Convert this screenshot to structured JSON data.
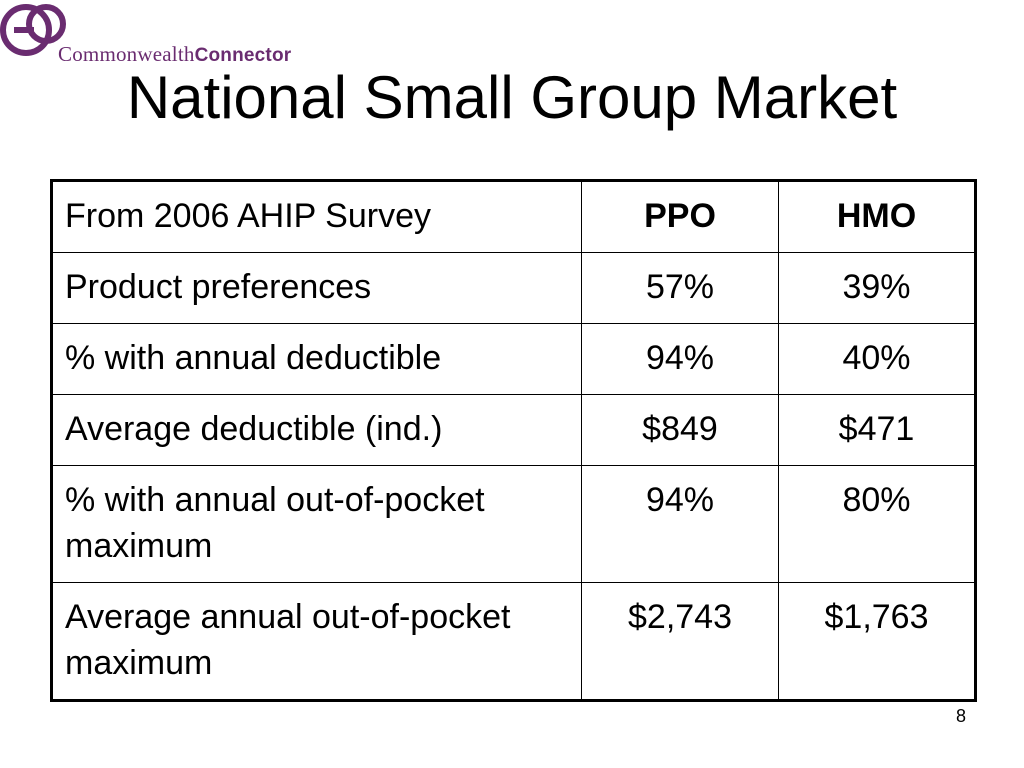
{
  "logo": {
    "text_regular": "Commonwealth",
    "text_bold": "Connector",
    "color": "#6a2c70"
  },
  "slide": {
    "title": "National Small Group Market",
    "page_number": "8"
  },
  "table": {
    "header": [
      "From 2006 AHIP Survey",
      "PPO",
      "HMO"
    ],
    "rows": [
      [
        "Product preferences",
        "57%",
        "39%"
      ],
      [
        "% with annual deductible",
        "94%",
        "40%"
      ],
      [
        "Average deductible (ind.)",
        "$849",
        "$471"
      ],
      [
        "% with annual out-of-pocket maximum",
        "94%",
        "80%"
      ],
      [
        "Average annual out-of-pocket maximum",
        "$2,743",
        "$1,763"
      ]
    ]
  }
}
